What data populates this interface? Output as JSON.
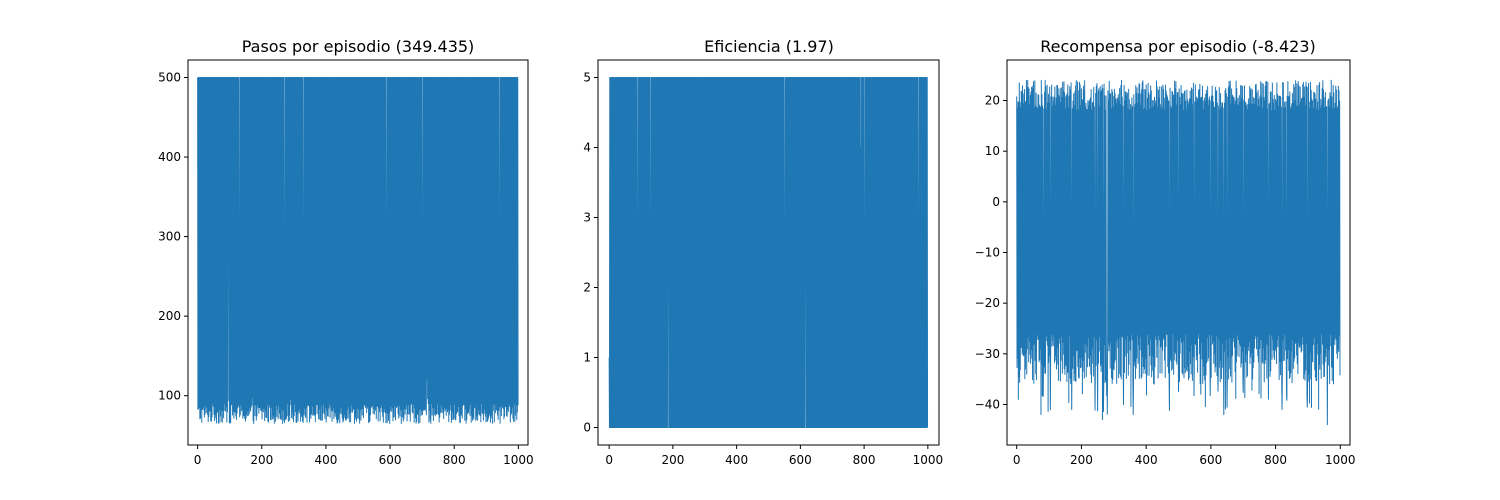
{
  "chart_data": [
    {
      "type": "line",
      "title": "Pasos por episodio (349.435)",
      "xlabel": "",
      "ylabel": "",
      "xlim": [
        -30,
        1030
      ],
      "ylim": [
        38,
        522
      ],
      "xticks": [
        0,
        200,
        400,
        600,
        800,
        1000
      ],
      "yticks": [
        100,
        200,
        300,
        400,
        500
      ],
      "grid": false,
      "n_points": 1000,
      "series": [
        {
          "color": "#1f77b4",
          "summary": {
            "max": 500,
            "min": 60,
            "mean": 349.435
          },
          "dense_range": [
            70,
            500
          ],
          "notable_points": [
            {
              "x": 95,
              "y": 370
            },
            {
              "x": 130,
              "y": 200
            },
            {
              "x": 270,
              "y": 130
            },
            {
              "x": 330,
              "y": 140
            },
            {
              "x": 590,
              "y": 140
            },
            {
              "x": 700,
              "y": 150
            },
            {
              "x": 715,
              "y": 120
            },
            {
              "x": 940,
              "y": 115
            }
          ]
        }
      ]
    },
    {
      "type": "line",
      "title": "Eficiencia (1.97)",
      "xlabel": "",
      "ylabel": "",
      "xlim": [
        -35,
        1035
      ],
      "ylim": [
        -0.25,
        5.25
      ],
      "xticks": [
        0,
        200,
        400,
        600,
        800,
        1000
      ],
      "yticks": [
        0,
        1,
        2,
        3,
        4,
        5
      ],
      "grid": false,
      "n_points": 1000,
      "series": [
        {
          "color": "#1f77b4",
          "summary": {
            "max": 5,
            "min": 0,
            "mean": 1.97
          },
          "levels": [
            0,
            1,
            2,
            3,
            4,
            5
          ],
          "notable_points": [
            {
              "x": 0,
              "y": 1
            },
            {
              "x": 90,
              "y": 3
            },
            {
              "x": 130,
              "y": 3
            },
            {
              "x": 185,
              "y": 2
            },
            {
              "x": 550,
              "y": 1
            },
            {
              "x": 615,
              "y": 2
            },
            {
              "x": 790,
              "y": 4
            },
            {
              "x": 800,
              "y": 3
            },
            {
              "x": 970,
              "y": 1
            }
          ]
        }
      ]
    },
    {
      "type": "line",
      "title": "Recompensa por episodio (-8.423)",
      "xlabel": "",
      "ylabel": "",
      "xlim": [
        -30,
        1030
      ],
      "ylim": [
        -48,
        28
      ],
      "xticks": [
        0,
        200,
        400,
        600,
        800,
        1000
      ],
      "yticks": [
        -40,
        -30,
        -20,
        -10,
        0,
        10,
        20
      ],
      "grid": false,
      "n_points": 1000,
      "series": [
        {
          "color": "#1f77b4",
          "summary": {
            "max": 25,
            "min": -44,
            "mean": -8.423
          },
          "dense_range": [
            -30,
            22
          ],
          "notable_points": [
            {
              "x": 5,
              "y": -39
            },
            {
              "x": 75,
              "y": -42
            },
            {
              "x": 170,
              "y": -41
            },
            {
              "x": 265,
              "y": -43
            },
            {
              "x": 330,
              "y": -40
            },
            {
              "x": 360,
              "y": -42
            },
            {
              "x": 640,
              "y": -42
            },
            {
              "x": 820,
              "y": -41
            },
            {
              "x": 960,
              "y": -44
            }
          ]
        }
      ]
    }
  ]
}
